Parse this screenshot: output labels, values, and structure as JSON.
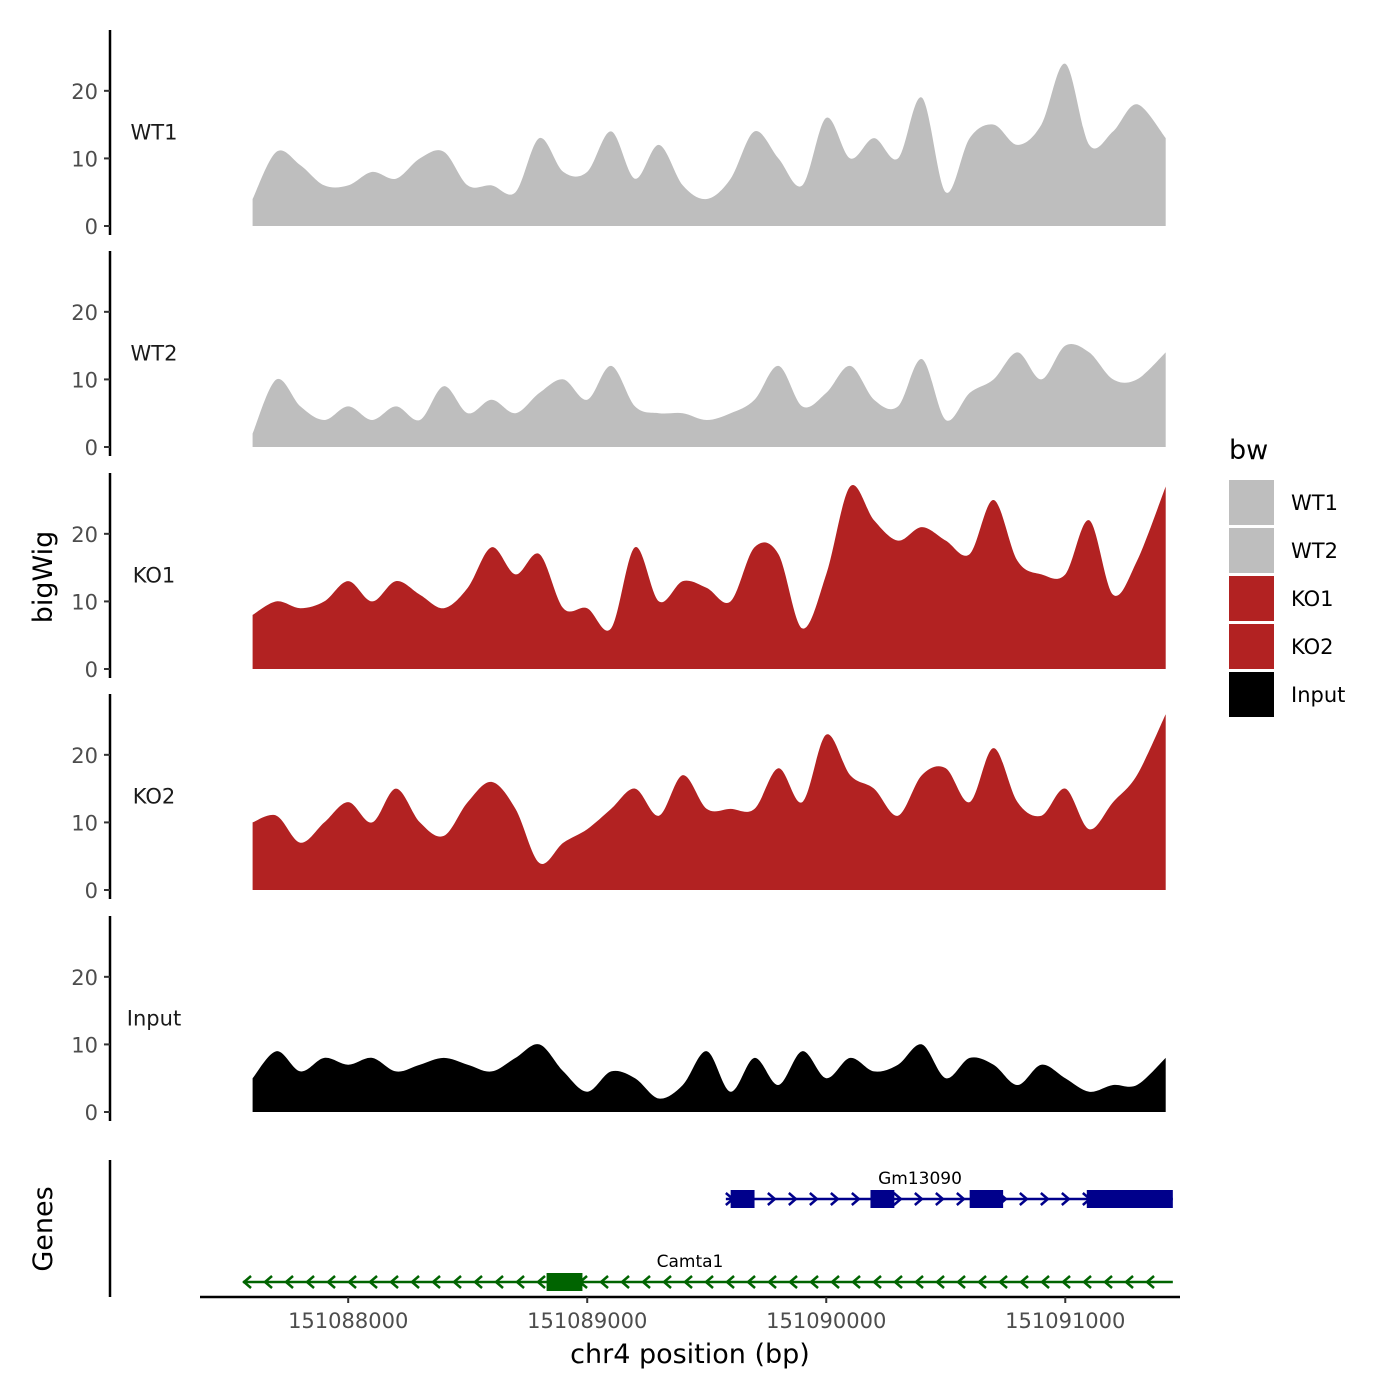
{
  "chart_data": {
    "type": "area",
    "title": "",
    "ylabel": "bigWig",
    "genes_label": "Genes",
    "xlabel": "chr4 position (bp)",
    "xlim": [
      151087380,
      151091480
    ],
    "ylim": [
      0,
      29
    ],
    "yticks": [
      0,
      10,
      20
    ],
    "xticks": [
      151088000,
      151089000,
      151090000,
      151091000
    ],
    "legend": {
      "title": "bw",
      "placement": "right",
      "entries": [
        {
          "label": "WT1",
          "color": "#bebebe"
        },
        {
          "label": "WT2",
          "color": "#bebebe"
        },
        {
          "label": "KO1",
          "color": "#b22222"
        },
        {
          "label": "KO2",
          "color": "#b22222"
        },
        {
          "label": "Input",
          "color": "#000000"
        }
      ]
    },
    "series": [
      {
        "name": "WT1",
        "color": "#bebebe",
        "x": [
          151087600,
          151087700,
          151087800,
          151087900,
          151088000,
          151088100,
          151088200,
          151088300,
          151088400,
          151088500,
          151088600,
          151088700,
          151088800,
          151088900,
          151089000,
          151089100,
          151089200,
          151089300,
          151089400,
          151089500,
          151089600,
          151089700,
          151089800,
          151089900,
          151090000,
          151090100,
          151090200,
          151090300,
          151090400,
          151090500,
          151090600,
          151090700,
          151090800,
          151090900,
          151091000,
          151091100,
          151091200,
          151091300,
          151091420
        ],
        "values": [
          4,
          11,
          9,
          6,
          6,
          8,
          7,
          10,
          11,
          6,
          6,
          5,
          13,
          8,
          8,
          14,
          7,
          12,
          6,
          4,
          7,
          14,
          10,
          6,
          16,
          10,
          13,
          10,
          19,
          5,
          13,
          15,
          12,
          15,
          24,
          12,
          14,
          18,
          13
        ]
      },
      {
        "name": "WT2",
        "color": "#bebebe",
        "x": [
          151087600,
          151087700,
          151087800,
          151087900,
          151088000,
          151088100,
          151088200,
          151088300,
          151088400,
          151088500,
          151088600,
          151088700,
          151088800,
          151088900,
          151089000,
          151089100,
          151089200,
          151089300,
          151089400,
          151089500,
          151089600,
          151089700,
          151089800,
          151089900,
          151090000,
          151090100,
          151090200,
          151090300,
          151090400,
          151090500,
          151090600,
          151090700,
          151090800,
          151090900,
          151091000,
          151091100,
          151091200,
          151091300,
          151091420
        ],
        "values": [
          2,
          10,
          6,
          4,
          6,
          4,
          6,
          4,
          9,
          5,
          7,
          5,
          8,
          10,
          7,
          12,
          6,
          5,
          5,
          4,
          5,
          7,
          12,
          6,
          8,
          12,
          7,
          6,
          13,
          4,
          8,
          10,
          14,
          10,
          15,
          14,
          10,
          10,
          14
        ]
      },
      {
        "name": "KO1",
        "color": "#b22222",
        "x": [
          151087600,
          151087700,
          151087800,
          151087900,
          151088000,
          151088100,
          151088200,
          151088300,
          151088400,
          151088500,
          151088600,
          151088700,
          151088800,
          151088900,
          151089000,
          151089100,
          151089200,
          151089300,
          151089400,
          151089500,
          151089600,
          151089700,
          151089800,
          151089900,
          151090000,
          151090100,
          151090200,
          151090300,
          151090400,
          151090500,
          151090600,
          151090700,
          151090800,
          151090900,
          151091000,
          151091100,
          151091200,
          151091300,
          151091420
        ],
        "values": [
          8,
          10,
          9,
          10,
          13,
          10,
          13,
          11,
          9,
          12,
          18,
          14,
          17,
          9,
          9,
          6,
          18,
          10,
          13,
          12,
          10,
          18,
          17,
          6,
          14,
          27,
          22,
          19,
          21,
          19,
          17,
          25,
          16,
          14,
          14,
          22,
          11,
          16,
          27
        ]
      },
      {
        "name": "KO2",
        "color": "#b22222",
        "x": [
          151087600,
          151087700,
          151087800,
          151087900,
          151088000,
          151088100,
          151088200,
          151088300,
          151088400,
          151088500,
          151088600,
          151088700,
          151088800,
          151088900,
          151089000,
          151089100,
          151089200,
          151089300,
          151089400,
          151089500,
          151089600,
          151089700,
          151089800,
          151089900,
          151090000,
          151090100,
          151090200,
          151090300,
          151090400,
          151090500,
          151090600,
          151090700,
          151090800,
          151090900,
          151091000,
          151091100,
          151091200,
          151091300,
          151091420
        ],
        "values": [
          10,
          11,
          7,
          10,
          13,
          10,
          15,
          10,
          8,
          13,
          16,
          12,
          4,
          7,
          9,
          12,
          15,
          11,
          17,
          12,
          12,
          12,
          18,
          13,
          23,
          17,
          15,
          11,
          17,
          18,
          13,
          21,
          13,
          11,
          15,
          9,
          13,
          17,
          26
        ]
      },
      {
        "name": "Input",
        "color": "#000000",
        "x": [
          151087600,
          151087700,
          151087800,
          151087900,
          151088000,
          151088100,
          151088200,
          151088300,
          151088400,
          151088500,
          151088600,
          151088700,
          151088800,
          151088900,
          151089000,
          151089100,
          151089200,
          151089300,
          151089400,
          151089500,
          151089600,
          151089700,
          151089800,
          151089900,
          151090000,
          151090100,
          151090200,
          151090300,
          151090400,
          151090500,
          151090600,
          151090700,
          151090800,
          151090900,
          151091000,
          151091100,
          151091200,
          151091300,
          151091420
        ],
        "values": [
          5,
          9,
          6,
          8,
          7,
          8,
          6,
          7,
          8,
          7,
          6,
          8,
          10,
          6,
          3,
          6,
          5,
          2,
          4,
          9,
          3,
          8,
          4,
          9,
          5,
          8,
          6,
          7,
          10,
          5,
          8,
          7,
          4,
          7,
          5,
          3,
          4,
          4,
          8
        ]
      }
    ],
    "genes": [
      {
        "name": "Gm13090",
        "color": "#00008b",
        "strand": "+",
        "start": 151089580,
        "end": 151091450,
        "exons": [
          [
            151089600,
            151089700
          ],
          [
            151090185,
            151090285
          ],
          [
            151090600,
            151090740
          ],
          [
            151091090,
            151091450
          ]
        ]
      },
      {
        "name": "Camta1",
        "color": "#006400",
        "strand": "-",
        "start": 151087560,
        "end": 151091450,
        "exons": [
          [
            151088830,
            151088980
          ]
        ]
      }
    ]
  }
}
